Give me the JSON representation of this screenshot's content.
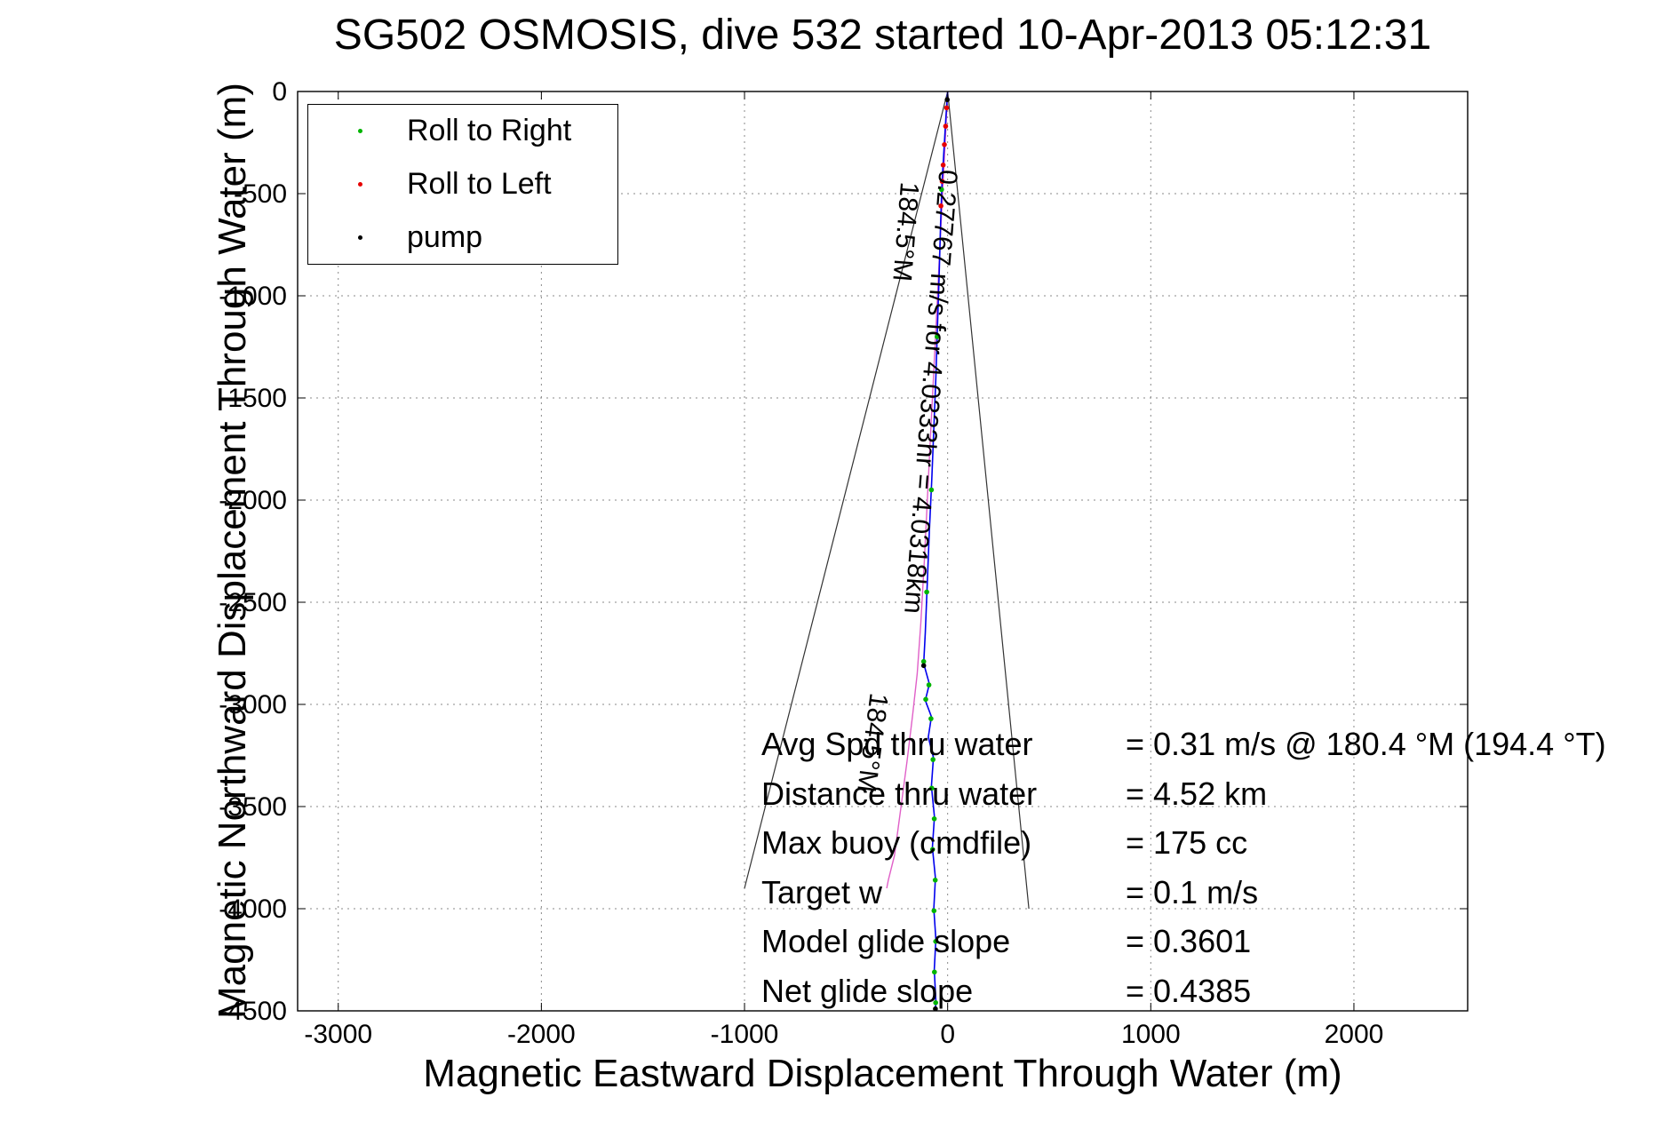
{
  "chart_data": {
    "type": "line",
    "title": "SG502 OSMOSIS, dive 532 started 10-Apr-2013 05:12:31",
    "xlabel": "Magnetic Eastward Displacement Through Water (m)",
    "ylabel": "Magnetic Northward Displacement Through Water (m)",
    "xlim": [
      -3200,
      2560
    ],
    "ylim": [
      -4500,
      0
    ],
    "xticks": [
      -3000,
      -2000,
      -1000,
      0,
      1000,
      2000
    ],
    "yticks": [
      0,
      -500,
      -1000,
      -1500,
      -2000,
      -2500,
      -3000,
      -3500,
      -4000,
      -4500
    ],
    "grid": true,
    "legend": {
      "position": "top-left",
      "entries": [
        {
          "label": "Roll to Right",
          "color": "#00b400"
        },
        {
          "label": "Roll to Left",
          "color": "#e60000"
        },
        {
          "label": "pump",
          "color": "#000000"
        }
      ]
    },
    "series": [
      {
        "name": "heading-envelope-left",
        "color": "#333333",
        "width": 1.2,
        "points": [
          [
            0,
            0
          ],
          [
            -1000,
            -3900
          ]
        ]
      },
      {
        "name": "heading-envelope-right",
        "color": "#333333",
        "width": 1.2,
        "points": [
          [
            0,
            0
          ],
          [
            400,
            -4000
          ]
        ]
      },
      {
        "name": "model-track",
        "color": "#e060c8",
        "width": 1.4,
        "points": [
          [
            0,
            0
          ],
          [
            -12,
            -250
          ],
          [
            -25,
            -500
          ],
          [
            -40,
            -800
          ],
          [
            -55,
            -1100
          ],
          [
            -70,
            -1400
          ],
          [
            -85,
            -1700
          ],
          [
            -100,
            -2000
          ],
          [
            -115,
            -2300
          ],
          [
            -132,
            -2600
          ],
          [
            -150,
            -2850
          ],
          [
            -172,
            -3050
          ],
          [
            -200,
            -3280
          ],
          [
            -232,
            -3520
          ],
          [
            -262,
            -3740
          ],
          [
            -292,
            -3860
          ],
          [
            -300,
            -3900
          ]
        ]
      },
      {
        "name": "dive-track",
        "color": "#0000ee",
        "width": 1.6,
        "points": [
          [
            0,
            0
          ],
          [
            -8,
            -120
          ],
          [
            -18,
            -280
          ],
          [
            -28,
            -450
          ],
          [
            -35,
            -650
          ],
          [
            -42,
            -900
          ],
          [
            -50,
            -1150
          ],
          [
            -58,
            -1400
          ],
          [
            -68,
            -1650
          ],
          [
            -78,
            -1900
          ],
          [
            -90,
            -2150
          ],
          [
            -100,
            -2400
          ],
          [
            -110,
            -2650
          ],
          [
            -118,
            -2800
          ],
          [
            -90,
            -2900
          ],
          [
            -110,
            -2980
          ],
          [
            -80,
            -3060
          ],
          [
            -95,
            -3160
          ],
          [
            -70,
            -3260
          ],
          [
            -80,
            -3400
          ],
          [
            -65,
            -3550
          ],
          [
            -75,
            -3700
          ],
          [
            -60,
            -3850
          ],
          [
            -68,
            -4000
          ],
          [
            -58,
            -4150
          ],
          [
            -66,
            -4300
          ],
          [
            -58,
            -4450
          ],
          [
            -60,
            -4500
          ]
        ]
      }
    ],
    "markers": [
      {
        "name": "roll-to-right",
        "color": "#00b400",
        "points": [
          [
            -30,
            -480
          ],
          [
            -52,
            -1200
          ],
          [
            -80,
            -1950
          ],
          [
            -103,
            -2450
          ],
          [
            -118,
            -2790
          ],
          [
            -92,
            -2905
          ],
          [
            -108,
            -2975
          ],
          [
            -82,
            -3070
          ],
          [
            -72,
            -3270
          ],
          [
            -78,
            -3410
          ],
          [
            -66,
            -3560
          ],
          [
            -74,
            -3710
          ],
          [
            -61,
            -3860
          ],
          [
            -67,
            -4010
          ],
          [
            -59,
            -4160
          ],
          [
            -65,
            -4310
          ],
          [
            -59,
            -4460
          ]
        ]
      },
      {
        "name": "roll-to-left",
        "color": "#e60000",
        "points": [
          [
            -5,
            -80
          ],
          [
            -10,
            -170
          ],
          [
            -16,
            -260
          ],
          [
            -22,
            -360
          ],
          [
            -27,
            -440
          ],
          [
            -33,
            -560
          ]
        ]
      },
      {
        "name": "pump",
        "color": "#000000",
        "points": [
          [
            -2,
            -40
          ],
          [
            -118,
            -2810
          ],
          [
            -60,
            -4490
          ]
        ]
      }
    ],
    "annotations": [
      {
        "text": "0.27767 m/s for 4.0333hr = 4.0318km",
        "x": -40,
        "y": -380,
        "rotation": 94.5
      },
      {
        "text": "184.5°M",
        "x": -230,
        "y": -440,
        "rotation": 94.5
      },
      {
        "text": "184.5°M",
        "x": -380,
        "y": -2940,
        "rotation": 97.5
      }
    ],
    "stats": [
      {
        "label": "Avg Spd thru water",
        "value": "=  0.31 m/s @ 180.4 °M (194.4 °T)"
      },
      {
        "label": "Distance thru water",
        "value": "=  4.52 km"
      },
      {
        "label": "Max buoy (cmdfile)",
        "value": "= 175 cc"
      },
      {
        "label": "Target w",
        "value": "= 0.1 m/s"
      },
      {
        "label": "Model glide slope",
        "value": "= 0.3601"
      },
      {
        "label": "Net glide slope",
        "value": "= 0.4385"
      }
    ]
  }
}
